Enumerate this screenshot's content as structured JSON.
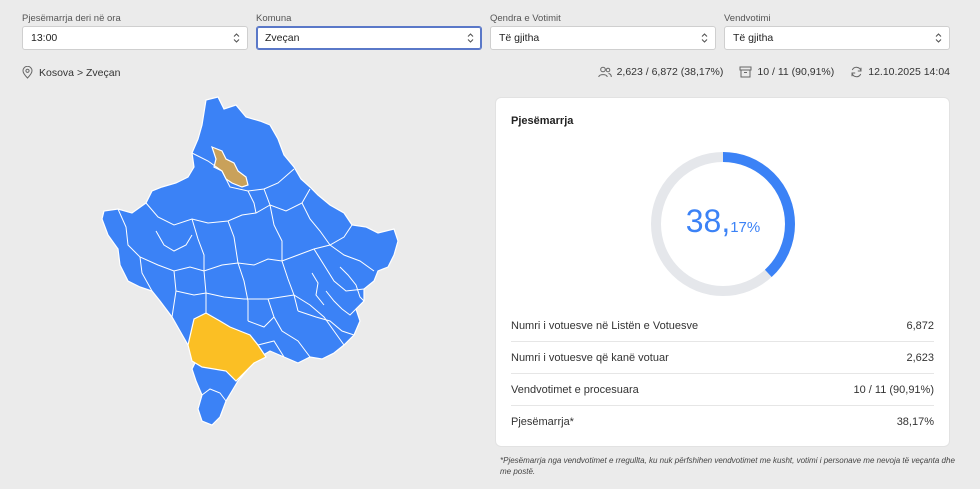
{
  "filters": [
    {
      "label": "Pjesëmarrja deri në ora",
      "value": "13:00"
    },
    {
      "label": "Komuna",
      "value": "Zveçan"
    },
    {
      "label": "Qendra e Votimit",
      "value": "Të gjitha"
    },
    {
      "label": "Vendvotimi",
      "value": "Të gjitha"
    }
  ],
  "breadcrumb": "Kosova > Zveçan",
  "stats": {
    "voters": "2,623 / 6,872 (38,17%)",
    "stations": "10 / 11 (90,91%)",
    "updated": "12.10.2025 14:04"
  },
  "card": {
    "title": "Pjesëmarrja",
    "turnout_int": "38,",
    "turnout_dec": "17%",
    "turnout_fraction": 0.3817,
    "rows": [
      {
        "label": "Numri i votuesve në Listën e Votuesve",
        "value": "6,872"
      },
      {
        "label": "Numri i votuesve që kanë votuar",
        "value": "2,623"
      },
      {
        "label": "Vendvotimet e procesuara",
        "value": "10 / 11 (90,91%)"
      },
      {
        "label": "Pjesëmarrja*",
        "value": "38,17%"
      }
    ]
  },
  "footnote": "*Pjesëmarrja nga vendvotimet e rregullta, ku nuk përfshihen vendvotimet me kusht, votimi i personave me nevoja të veçanta dhe me postë.",
  "colors": {
    "accent": "#3b82f6",
    "track": "#e5e7eb",
    "selected_municipality": "#c9a15a",
    "highlight_municipality": "#fbbf24"
  }
}
